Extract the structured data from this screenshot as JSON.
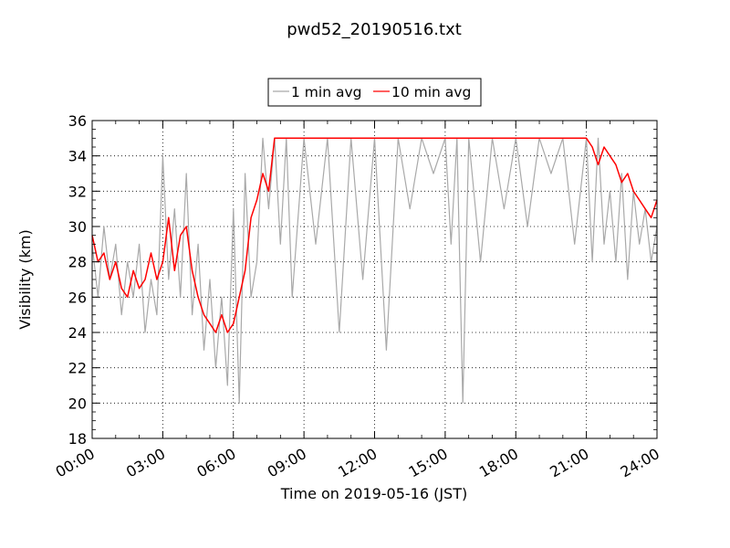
{
  "chart_data": {
    "type": "line",
    "title": "pwd52_20190516.txt",
    "xlabel": "Time on 2019-05-16 (JST)",
    "ylabel": "Visibility (km)",
    "xlim": [
      "00:00",
      "24:00"
    ],
    "ylim": [
      18,
      36
    ],
    "x_ticks": [
      "00:00",
      "03:00",
      "06:00",
      "09:00",
      "12:00",
      "15:00",
      "18:00",
      "21:00",
      "24:00"
    ],
    "y_ticks": [
      "18",
      "20",
      "22",
      "24",
      "26",
      "28",
      "30",
      "32",
      "34",
      "36"
    ],
    "grid": true,
    "legend_position": "top-center",
    "series": [
      {
        "name": "1 min avg",
        "color": "#a9a9a9",
        "x": [
          "00:00",
          "00:15",
          "00:30",
          "00:45",
          "01:00",
          "01:15",
          "01:30",
          "01:45",
          "02:00",
          "02:15",
          "02:30",
          "02:45",
          "03:00",
          "03:15",
          "03:30",
          "03:45",
          "04:00",
          "04:15",
          "04:30",
          "04:45",
          "05:00",
          "05:15",
          "05:30",
          "05:45",
          "06:00",
          "06:15",
          "06:30",
          "06:45",
          "07:00",
          "07:15",
          "07:30",
          "07:45",
          "08:00",
          "08:15",
          "08:30",
          "09:00",
          "09:30",
          "10:00",
          "10:30",
          "11:00",
          "11:30",
          "12:00",
          "12:30",
          "13:00",
          "13:30",
          "14:00",
          "14:30",
          "15:00",
          "15:15",
          "15:30",
          "15:45",
          "16:00",
          "16:30",
          "17:00",
          "17:30",
          "18:00",
          "18:30",
          "19:00",
          "19:30",
          "20:00",
          "20:30",
          "21:00",
          "21:15",
          "21:30",
          "21:45",
          "22:00",
          "22:15",
          "22:30",
          "22:45",
          "23:00",
          "23:15",
          "23:30",
          "23:45",
          "24:00"
        ],
        "values": [
          29,
          26,
          30,
          27,
          29,
          25,
          28,
          26,
          29,
          24,
          27,
          25,
          34,
          27,
          31,
          26,
          33,
          25,
          29,
          23,
          27,
          22,
          26,
          21,
          31,
          20,
          33,
          26,
          28,
          35,
          31,
          35,
          29,
          35,
          26,
          35,
          29,
          35,
          24,
          35,
          27,
          35,
          23,
          35,
          31,
          35,
          33,
          35,
          29,
          35,
          20,
          35,
          28,
          35,
          31,
          35,
          30,
          35,
          33,
          35,
          29,
          35,
          28,
          35,
          29,
          32,
          28,
          33,
          27,
          32,
          29,
          31,
          28,
          30
        ]
      },
      {
        "name": "10 min avg",
        "color": "#ff0000",
        "x": [
          "00:00",
          "00:15",
          "00:30",
          "00:45",
          "01:00",
          "01:15",
          "01:30",
          "01:45",
          "02:00",
          "02:15",
          "02:30",
          "02:45",
          "03:00",
          "03:15",
          "03:30",
          "03:45",
          "04:00",
          "04:15",
          "04:30",
          "04:45",
          "05:00",
          "05:15",
          "05:30",
          "05:45",
          "06:00",
          "06:15",
          "06:30",
          "06:45",
          "07:00",
          "07:15",
          "07:30",
          "07:45",
          "08:00",
          "08:15",
          "08:30",
          "09:00",
          "10:00",
          "11:00",
          "12:00",
          "13:00",
          "14:00",
          "15:00",
          "16:00",
          "17:00",
          "18:00",
          "19:00",
          "20:00",
          "20:30",
          "21:00",
          "21:15",
          "21:30",
          "21:45",
          "22:00",
          "22:15",
          "22:30",
          "22:45",
          "23:00",
          "23:15",
          "23:30",
          "23:45",
          "24:00"
        ],
        "values": [
          29.5,
          28,
          28.5,
          27,
          28,
          26.5,
          26,
          27.5,
          26.5,
          27,
          28.5,
          27,
          28,
          30.5,
          27.5,
          29.5,
          30,
          27.5,
          26,
          25,
          24.5,
          24,
          25,
          24,
          24.5,
          26,
          27.5,
          30.5,
          31.5,
          33,
          32,
          35,
          35,
          35,
          35,
          35,
          35,
          35,
          35,
          35,
          35,
          35,
          35,
          35,
          35,
          35,
          35,
          35,
          35,
          34.5,
          33.5,
          34.5,
          34,
          33.5,
          32.5,
          33,
          32,
          31.5,
          31,
          30.5,
          31.5
        ]
      }
    ]
  }
}
